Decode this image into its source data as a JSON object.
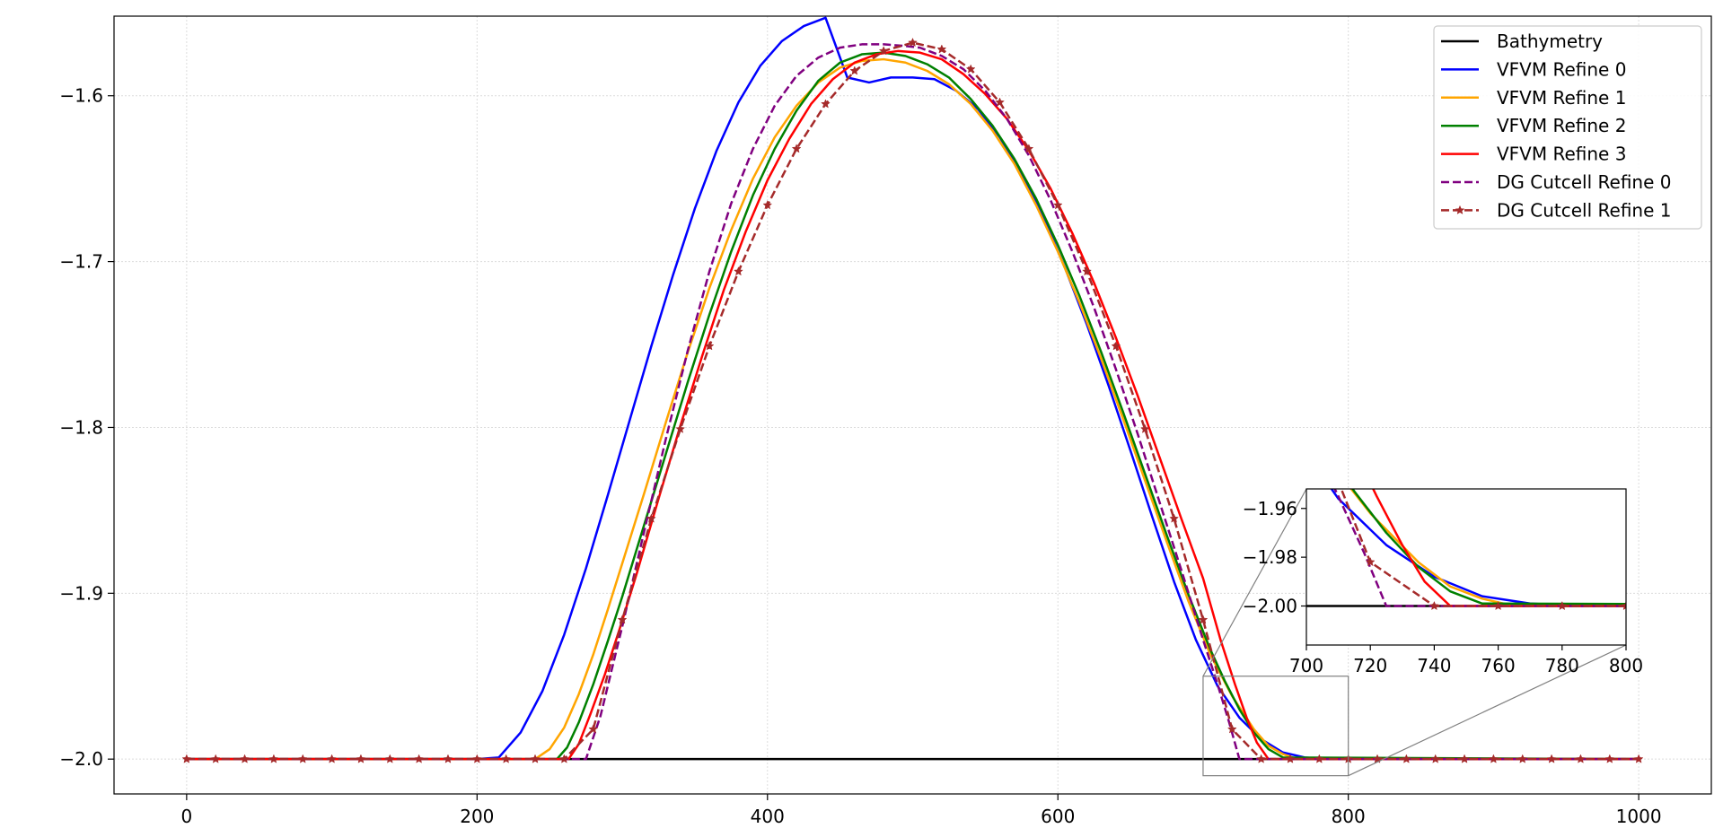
{
  "colors": {
    "bathymetry": "#000000",
    "refine0": "#0000ff",
    "refine1": "#ffa500",
    "refine2": "#008000",
    "refine3": "#ff0000",
    "dg0": "#800080",
    "dg1": "#a52a2a",
    "grid": "#dcdcdc",
    "connector": "#808080"
  },
  "chart_data": {
    "type": "line",
    "title": "",
    "xlabel": "",
    "ylabel": "",
    "xlim": [
      -50,
      1050
    ],
    "ylim": [
      -2.021,
      -1.552
    ],
    "xticks": [
      0,
      200,
      400,
      600,
      800,
      1000
    ],
    "yticks": [
      -2.0,
      -1.9,
      -1.8,
      -1.7,
      -1.6
    ],
    "xtick_labels": [
      "0",
      "200",
      "400",
      "600",
      "800",
      "1000"
    ],
    "ytick_labels": [
      "−2.0",
      "−1.9",
      "−1.8",
      "−1.7",
      "−1.6"
    ],
    "grid": true,
    "legend_position": "top-right",
    "series": [
      {
        "name": "Bathymetry",
        "style": "solid",
        "x": [
          0,
          1000
        ],
        "y": [
          -2.0,
          -2.0
        ]
      },
      {
        "name": "VFVM Refine 0",
        "style": "solid",
        "x": [
          0,
          200,
          215,
          230,
          245,
          260,
          275,
          290,
          305,
          320,
          335,
          350,
          365,
          380,
          395,
          410,
          425,
          440,
          455,
          470,
          485,
          500,
          515,
          530,
          545,
          560,
          575,
          590,
          605,
          620,
          635,
          650,
          665,
          680,
          695,
          710,
          725,
          740,
          755,
          770,
          785,
          800,
          1000
        ],
        "y": [
          -2.0,
          -2.0,
          -1.999,
          -1.984,
          -1.959,
          -1.925,
          -1.885,
          -1.841,
          -1.796,
          -1.751,
          -1.708,
          -1.668,
          -1.633,
          -1.604,
          -1.582,
          -1.567,
          -1.558,
          -1.553,
          -1.589,
          -1.592,
          -1.589,
          -1.589,
          -1.59,
          -1.597,
          -1.608,
          -1.625,
          -1.647,
          -1.673,
          -1.704,
          -1.738,
          -1.775,
          -1.814,
          -1.854,
          -1.893,
          -1.928,
          -1.956,
          -1.975,
          -1.988,
          -1.996,
          -1.999,
          -2.0,
          -2.0,
          -2.0
        ]
      },
      {
        "name": "VFVM Refine 1",
        "style": "solid",
        "x": [
          0,
          240,
          250,
          260,
          270,
          280,
          290,
          300,
          315,
          330,
          345,
          360,
          375,
          390,
          405,
          420,
          435,
          450,
          465,
          480,
          495,
          510,
          525,
          540,
          555,
          570,
          585,
          600,
          615,
          630,
          645,
          660,
          675,
          690,
          705,
          720,
          735,
          745,
          755,
          765,
          1000
        ],
        "y": [
          -2.0,
          -2.0,
          -1.994,
          -1.981,
          -1.961,
          -1.937,
          -1.91,
          -1.882,
          -1.84,
          -1.797,
          -1.755,
          -1.716,
          -1.681,
          -1.65,
          -1.625,
          -1.606,
          -1.592,
          -1.583,
          -1.579,
          -1.578,
          -1.58,
          -1.585,
          -1.593,
          -1.605,
          -1.621,
          -1.641,
          -1.666,
          -1.694,
          -1.725,
          -1.759,
          -1.795,
          -1.832,
          -1.869,
          -1.905,
          -1.937,
          -1.962,
          -1.982,
          -1.992,
          -1.997,
          -2.0,
          -2.0
        ]
      },
      {
        "name": "VFVM Refine 2",
        "style": "solid",
        "x": [
          0,
          255,
          262,
          270,
          280,
          290,
          300,
          315,
          330,
          345,
          360,
          375,
          390,
          405,
          420,
          435,
          450,
          465,
          480,
          495,
          510,
          525,
          540,
          555,
          570,
          585,
          600,
          615,
          630,
          645,
          660,
          675,
          690,
          705,
          715,
          725,
          735,
          745,
          755,
          1000
        ],
        "y": [
          -2.0,
          -2.0,
          -1.993,
          -1.978,
          -1.955,
          -1.929,
          -1.902,
          -1.859,
          -1.816,
          -1.773,
          -1.732,
          -1.694,
          -1.66,
          -1.632,
          -1.609,
          -1.591,
          -1.58,
          -1.575,
          -1.574,
          -1.576,
          -1.581,
          -1.589,
          -1.602,
          -1.618,
          -1.638,
          -1.662,
          -1.69,
          -1.721,
          -1.755,
          -1.791,
          -1.828,
          -1.865,
          -1.901,
          -1.934,
          -1.953,
          -1.97,
          -1.984,
          -1.994,
          -1.999,
          -2.0
        ]
      },
      {
        "name": "VFVM Refine 3",
        "style": "solid",
        "x": [
          0,
          263,
          270,
          278,
          288,
          298,
          310,
          325,
          340,
          355,
          370,
          385,
          400,
          415,
          430,
          445,
          460,
          475,
          490,
          505,
          520,
          535,
          550,
          565,
          580,
          595,
          610,
          625,
          640,
          655,
          670,
          685,
          700,
          712,
          722,
          730,
          737,
          745,
          1000
        ],
        "y": [
          -2.0,
          -2.0,
          -1.991,
          -1.973,
          -1.949,
          -1.922,
          -1.888,
          -1.843,
          -1.799,
          -1.757,
          -1.717,
          -1.682,
          -1.651,
          -1.626,
          -1.605,
          -1.59,
          -1.58,
          -1.575,
          -1.573,
          -1.574,
          -1.578,
          -1.587,
          -1.599,
          -1.614,
          -1.633,
          -1.656,
          -1.683,
          -1.713,
          -1.746,
          -1.781,
          -1.818,
          -1.855,
          -1.891,
          -1.928,
          -1.955,
          -1.975,
          -1.99,
          -2.0,
          -2.0
        ]
      },
      {
        "name": "DG Cutcell Refine 0",
        "style": "dashed",
        "x": [
          0,
          275,
          285,
          300,
          315,
          330,
          345,
          360,
          375,
          390,
          405,
          420,
          435,
          450,
          465,
          480,
          495,
          505,
          520,
          535,
          550,
          565,
          580,
          595,
          610,
          625,
          640,
          655,
          670,
          685,
          700,
          710,
          718,
          725,
          1000
        ],
        "y": [
          -2.0,
          -2.0,
          -1.974,
          -1.92,
          -1.863,
          -1.807,
          -1.754,
          -1.706,
          -1.665,
          -1.632,
          -1.606,
          -1.588,
          -1.577,
          -1.571,
          -1.569,
          -1.569,
          -1.57,
          -1.571,
          -1.576,
          -1.584,
          -1.597,
          -1.614,
          -1.636,
          -1.663,
          -1.694,
          -1.728,
          -1.765,
          -1.804,
          -1.845,
          -1.886,
          -1.928,
          -1.955,
          -1.978,
          -2.0,
          -2.0
        ]
      },
      {
        "name": "DG Cutcell Refine 1",
        "style": "dashed-star",
        "x": [
          0,
          20,
          40,
          60,
          80,
          100,
          120,
          140,
          160,
          180,
          200,
          220,
          240,
          260,
          280,
          300,
          320,
          340,
          360,
          380,
          400,
          420,
          440,
          460,
          480,
          500,
          520,
          540,
          560,
          580,
          600,
          620,
          640,
          660,
          680,
          700,
          720,
          740,
          760,
          780,
          800,
          820,
          840,
          860,
          880,
          900,
          920,
          940,
          960,
          980,
          1000
        ],
        "y": [
          -2.0,
          -2.0,
          -2.0,
          -2.0,
          -2.0,
          -2.0,
          -2.0,
          -2.0,
          -2.0,
          -2.0,
          -2.0,
          -2.0,
          -2.0,
          -2.0,
          -1.982,
          -1.916,
          -1.855,
          -1.801,
          -1.751,
          -1.706,
          -1.666,
          -1.632,
          -1.605,
          -1.585,
          -1.573,
          -1.568,
          -1.572,
          -1.584,
          -1.604,
          -1.632,
          -1.666,
          -1.706,
          -1.751,
          -1.801,
          -1.855,
          -1.916,
          -1.982,
          -2.0,
          -2.0,
          -2.0,
          -2.0,
          -2.0,
          -2.0,
          -2.0,
          -2.0,
          -2.0,
          -2.0,
          -2.0,
          -2.0,
          -2.0,
          -2.0
        ]
      }
    ],
    "inset": {
      "xlim": [
        700,
        800
      ],
      "ylim": [
        -2.016,
        -1.952
      ],
      "xticks": [
        700,
        720,
        740,
        760,
        780,
        800
      ],
      "yticks": [
        -2.0,
        -1.98,
        -1.96
      ],
      "xtick_labels": [
        "700",
        "720",
        "740",
        "760",
        "780",
        "800"
      ],
      "ytick_labels": [
        "−2.00",
        "−1.98",
        "−1.96"
      ],
      "zoom_region": {
        "xlim": [
          700,
          800
        ],
        "ylim": [
          -2.01,
          -1.95
        ]
      }
    }
  }
}
